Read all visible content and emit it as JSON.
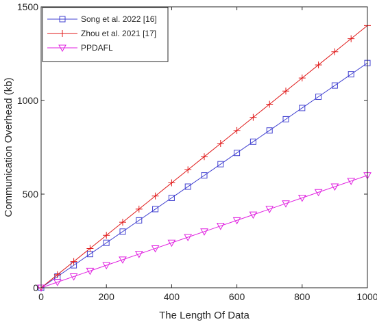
{
  "chart_data": {
    "type": "line",
    "title": "",
    "xlabel": "The Length Of Data",
    "ylabel": "Communication  Overhead (kb)",
    "xlim": [
      0,
      1000
    ],
    "ylim": [
      0,
      1500
    ],
    "x_ticks": [
      0,
      200,
      400,
      600,
      800,
      1000
    ],
    "y_ticks": [
      0,
      500,
      1000,
      1500
    ],
    "grid": false,
    "legend_position": "top-left",
    "x": [
      0,
      50,
      100,
      150,
      200,
      250,
      300,
      350,
      400,
      450,
      500,
      550,
      600,
      650,
      700,
      750,
      800,
      850,
      900,
      950,
      1000
    ],
    "series": [
      {
        "name": "Song et al. 2022 [16]",
        "color": "#4040d0",
        "marker": "square",
        "values": [
          0,
          60,
          120,
          180,
          240,
          300,
          360,
          420,
          480,
          540,
          600,
          660,
          720,
          780,
          840,
          900,
          960,
          1020,
          1080,
          1140,
          1200
        ]
      },
      {
        "name": "Zhou et al. 2021 [17]",
        "color": "#e01818",
        "marker": "plus",
        "values": [
          0,
          70,
          140,
          210,
          280,
          350,
          420,
          490,
          560,
          630,
          700,
          770,
          840,
          910,
          980,
          1050,
          1120,
          1190,
          1260,
          1330,
          1400
        ]
      },
      {
        "name": "PPDAFL",
        "color": "#e020e0",
        "marker": "triangle-down",
        "values": [
          0,
          30,
          60,
          90,
          120,
          150,
          180,
          210,
          240,
          270,
          300,
          330,
          360,
          390,
          420,
          450,
          480,
          510,
          540,
          570,
          600
        ]
      }
    ]
  }
}
